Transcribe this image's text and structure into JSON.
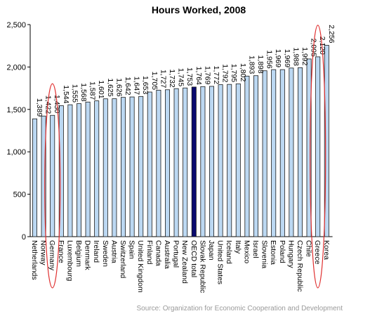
{
  "chart_data": {
    "type": "bar",
    "title": "Hours Worked, 2008",
    "source": "Source: Organization for Economic Cooperation and Development",
    "xlabel": "",
    "ylabel": "",
    "ylim": [
      0,
      2500
    ],
    "yticks": [
      0,
      500,
      1000,
      1500,
      2000,
      2500
    ],
    "ytick_labels": [
      "0",
      "500",
      "1,000",
      "1,500",
      "2,000",
      "2,500"
    ],
    "grid": false,
    "legend": "none",
    "categories": [
      "Netherlands",
      "Norway",
      "Germany",
      "France",
      "Luxembourg",
      "Belgium",
      "Denmark",
      "Ireland",
      "Sweden",
      "Austria",
      "Switzerland",
      "Spain",
      "United Kingdom",
      "Finland",
      "Canada",
      "Australia",
      "Portugal",
      "New Zealand",
      "OECD total",
      "Slovak Republic",
      "Japan",
      "United States",
      "Iceland",
      "Italy",
      "Mexico",
      "Israel",
      "Slovenia",
      "Estonia",
      "Poland",
      "Hungary",
      "Czech Republic",
      "Chile",
      "Greece",
      "Korea"
    ],
    "values": [
      1389,
      1422,
      1430,
      1544,
      1555,
      1568,
      1587,
      1601,
      1625,
      1626,
      1642,
      1647,
      1653,
      1705,
      1727,
      1732,
      1745,
      1753,
      1764,
      1769,
      1772,
      1792,
      1795,
      1802,
      1893,
      1898,
      1956,
      1969,
      1969,
      1988,
      1992,
      2095,
      2120,
      2256
    ],
    "value_labels": [
      "1,389",
      "1,422",
      "1,430",
      "1,544",
      "1,555",
      "1,568",
      "1,587",
      "1,601",
      "1,625",
      "1,626",
      "1,642",
      "1,647",
      "1,653",
      "1,705",
      "1,727",
      "1,732",
      "1,745",
      "1,753",
      "1,764",
      "1,769",
      "1,772",
      "1,792",
      "1,795",
      "1,802",
      "1,893",
      "1,898",
      "1,956",
      "1,969",
      "1,969",
      "1,988",
      "1,992",
      "2,095",
      "2,120",
      "2,256"
    ],
    "highlighted": [
      "OECD total"
    ],
    "circled": [
      "Germany",
      "Greece"
    ],
    "colors": {
      "bar": "#bcd8f2",
      "bar_stroke": "#1a1a1a",
      "highlight": "#0a0a6e",
      "circle": "#e03030",
      "axis": "#000000"
    }
  }
}
